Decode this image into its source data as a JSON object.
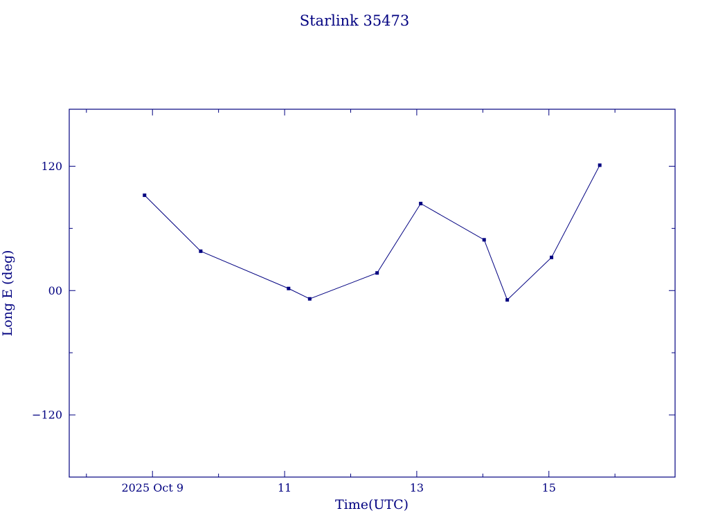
{
  "colors": {
    "plot": "#000080",
    "background": "#ffffff"
  },
  "chart_data": {
    "type": "line",
    "title": "Starlink 35473",
    "xlabel": "Time(UTC)",
    "ylabel": "Long E (deg)",
    "xlim": [
      7.74,
      16.91
    ],
    "ylim": [
      -180,
      175
    ],
    "grid": false,
    "legend_position": "none",
    "marker": "filled-square",
    "line_color": "#000080",
    "x_ticks": {
      "major": [
        {
          "value": 9,
          "label": "2025 Oct 9"
        },
        {
          "value": 11,
          "label": "11"
        },
        {
          "value": 13,
          "label": "13"
        },
        {
          "value": 15,
          "label": "15"
        }
      ],
      "minor": [
        8,
        10,
        12,
        14,
        16
      ]
    },
    "y_ticks": {
      "major": [
        {
          "value": 120,
          "label": "120"
        },
        {
          "value": 0,
          "label": "00"
        },
        {
          "value": -120,
          "label": "−120"
        }
      ],
      "minor": [
        -60,
        60
      ]
    },
    "series": [
      {
        "name": "Starlink 35473",
        "points": [
          {
            "x": 8.88,
            "y": 92
          },
          {
            "x": 9.73,
            "y": 38
          },
          {
            "x": 11.06,
            "y": 2
          },
          {
            "x": 11.38,
            "y": -8
          },
          {
            "x": 12.4,
            "y": 17
          },
          {
            "x": 13.06,
            "y": 84
          },
          {
            "x": 14.02,
            "y": 49
          },
          {
            "x": 14.37,
            "y": -9
          },
          {
            "x": 15.04,
            "y": 32
          },
          {
            "x": 15.77,
            "y": 121
          }
        ]
      }
    ]
  }
}
